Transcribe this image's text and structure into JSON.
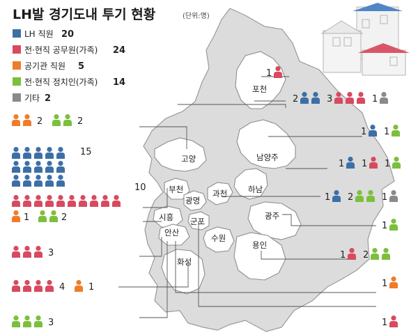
{
  "title": {
    "main": "LH발 경기도내 투기 현황",
    "unit": "(단위:명)"
  },
  "colors": {
    "lh": "#3d6fa6",
    "official": "#d74a5f",
    "public": "#ee7d2b",
    "politician": "#7cbf3d",
    "other": "#8a8a8a"
  },
  "legend": [
    {
      "key": "lh",
      "label": "LH 직원",
      "count": "20"
    },
    {
      "key": "official",
      "label": "전·현직 공무원(가족)",
      "count": "24"
    },
    {
      "key": "public",
      "label": "공기관 직원",
      "count": "5"
    },
    {
      "key": "politician",
      "label": "전·현직 정치인(가족)",
      "count": "14"
    },
    {
      "key": "other",
      "label": "기타",
      "count": "2"
    }
  ],
  "regions": [
    {
      "id": "pocheon",
      "name": "포천"
    },
    {
      "id": "namyangju",
      "name": "남양주"
    },
    {
      "id": "goyang",
      "name": "고양"
    },
    {
      "id": "hanam",
      "name": "하남"
    },
    {
      "id": "bucheon",
      "name": "부천"
    },
    {
      "id": "gwangmyeong",
      "name": "광명"
    },
    {
      "id": "gwacheon",
      "name": "과천"
    },
    {
      "id": "gwangju",
      "name": "광주"
    },
    {
      "id": "siheung",
      "name": "시흥"
    },
    {
      "id": "gunpo",
      "name": "군포"
    },
    {
      "id": "ansan",
      "name": "안산"
    },
    {
      "id": "suwon",
      "name": "수원"
    },
    {
      "id": "yongin",
      "name": "용인"
    },
    {
      "id": "hwaseong",
      "name": "화성"
    }
  ],
  "counts": {
    "pocheon": [
      {
        "key": "official",
        "n": 1,
        "text": "1"
      }
    ],
    "right_row2": [
      {
        "key": "lh",
        "n": 2,
        "text": "2"
      },
      {
        "key": "official",
        "n": 3,
        "text": "3"
      },
      {
        "key": "other",
        "n": 1,
        "text": "1"
      }
    ],
    "left_row1": [
      {
        "key": "public",
        "n": 2,
        "text": "2"
      },
      {
        "key": "politician",
        "n": 2,
        "text": "2"
      }
    ],
    "right_row3": [
      {
        "key": "lh",
        "n": 1,
        "text": "1"
      },
      {
        "key": "politician",
        "n": 1,
        "text": "1"
      }
    ],
    "left_big_lh": [
      {
        "key": "lh",
        "n": 15,
        "text": "15"
      }
    ],
    "left_big_official": [
      {
        "key": "official",
        "n": 10,
        "text": "10"
      }
    ],
    "right_row4": [
      {
        "key": "lh",
        "n": 1,
        "text": "1"
      },
      {
        "key": "official",
        "n": 1,
        "text": "1"
      },
      {
        "key": "politician",
        "n": 1,
        "text": "1"
      }
    ],
    "right_row5": [
      {
        "key": "lh",
        "n": 1,
        "text": "1"
      },
      {
        "key": "politician",
        "n": 2,
        "text": "2"
      },
      {
        "key": "other",
        "n": 1,
        "text": "1"
      }
    ],
    "left_row_mid": [
      {
        "key": "public",
        "n": 1,
        "text": "1"
      },
      {
        "key": "politician",
        "n": 2,
        "text": "2"
      }
    ],
    "right_row6": [
      {
        "key": "politician",
        "n": 1,
        "text": "1"
      }
    ],
    "left_row_siheung": [
      {
        "key": "official",
        "n": 3,
        "text": "3"
      }
    ],
    "right_row7": [
      {
        "key": "official",
        "n": 1,
        "text": "1"
      },
      {
        "key": "politician",
        "n": 2,
        "text": "2"
      }
    ],
    "left_row_hwaseong": [
      {
        "key": "official",
        "n": 4,
        "text": "4"
      },
      {
        "key": "public",
        "n": 1,
        "text": "1"
      }
    ],
    "right_row8": [
      {
        "key": "public",
        "n": 1,
        "text": "1"
      }
    ],
    "left_row_bottom": [
      {
        "key": "politician",
        "n": 3,
        "text": "3"
      }
    ],
    "right_row9": [
      {
        "key": "official",
        "n": 1,
        "text": "1"
      }
    ]
  }
}
